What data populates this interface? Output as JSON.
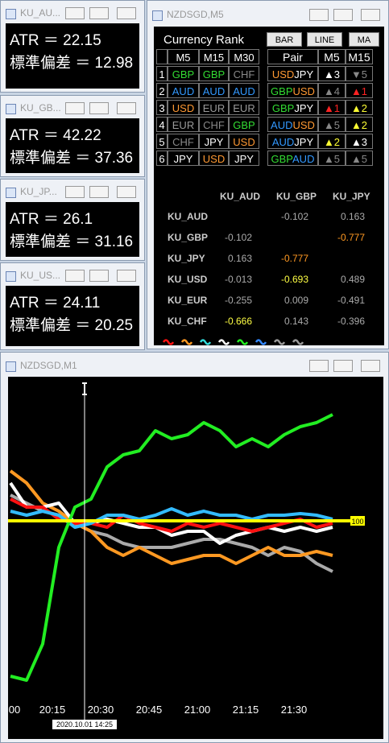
{
  "left_windows": [
    {
      "title": "KU_AU...",
      "lines": [
        "ATR ＝ 22.15",
        "標準偏差 ＝ 12.98"
      ]
    },
    {
      "title": "KU_GB...",
      "lines": [
        "ATR ＝ 42.22",
        "標準偏差 ＝ 37.36"
      ]
    },
    {
      "title": "KU_JP...",
      "lines": [
        "ATR ＝ 26.1",
        "標準偏差 ＝ 31.16"
      ]
    },
    {
      "title": "KU_US...",
      "lines": [
        "ATR ＝ 24.11",
        "標準偏差 ＝ 20.25"
      ]
    }
  ],
  "rank_window": {
    "title": "NZDSGD,M5",
    "heading": "Currency Rank",
    "buttons": [
      "BAR",
      "LINE",
      "MA"
    ],
    "currency_colors": {
      "GBP": "#33dd33",
      "AUD": "#3399ff",
      "USD": "#ff9933",
      "EUR": "#999999",
      "CHF": "#888888",
      "JPY": "#ffffff"
    },
    "ranks": [
      1,
      2,
      3,
      4,
      5,
      6
    ],
    "rank_table": {
      "columns": [
        "M5",
        "M15",
        "M30"
      ],
      "rows": [
        [
          "GBP",
          "GBP",
          "CHF"
        ],
        [
          "AUD",
          "AUD",
          "AUD"
        ],
        [
          "USD",
          "EUR",
          "EUR"
        ],
        [
          "EUR",
          "CHF",
          "GBP"
        ],
        [
          "CHF",
          "JPY",
          "USD"
        ],
        [
          "JPY",
          "USD",
          "JPY"
        ]
      ]
    },
    "pair_table": {
      "columns": [
        "Pair",
        "M5",
        "M15"
      ],
      "rows": [
        {
          "pair": [
            "USD",
            "JPY"
          ],
          "m5": "▲3",
          "m5_color": "#ffffff",
          "m15": "▼5",
          "m15_color": "#888888"
        },
        {
          "pair": [
            "GBP",
            "USD"
          ],
          "m5": "▲4",
          "m5_color": "#888888",
          "m15": "▲1",
          "m15_color": "#ff2222"
        },
        {
          "pair": [
            "GBP",
            "JPY"
          ],
          "m5": "▲1",
          "m5_color": "#ff2222",
          "m15": "▲2",
          "m15_color": "#ffff33"
        },
        {
          "pair": [
            "AUD",
            "USD"
          ],
          "m5": "▲5",
          "m5_color": "#888888",
          "m15": "▲2",
          "m15_color": "#ffff33"
        },
        {
          "pair": [
            "AUD",
            "JPY"
          ],
          "m5": "▲2",
          "m5_color": "#ffff33",
          "m15": "▲3",
          "m15_color": "#ffffff"
        },
        {
          "pair": [
            "GBP",
            "AUD"
          ],
          "m5": "▲5",
          "m5_color": "#888888",
          "m15": "▲5",
          "m15_color": "#888888"
        }
      ]
    },
    "correlation": {
      "columns": [
        "KU_AUD",
        "KU_GBP",
        "KU_JPY"
      ],
      "rows": [
        {
          "label": "KU_AUD",
          "values": [
            null,
            -0.102,
            0.163
          ],
          "colors": [
            null,
            "#aaaaaa",
            "#aaaaaa"
          ]
        },
        {
          "label": "KU_GBP",
          "values": [
            -0.102,
            null,
            -0.777
          ],
          "colors": [
            "#aaaaaa",
            null,
            "#ff9922"
          ]
        },
        {
          "label": "KU_JPY",
          "values": [
            0.163,
            -0.777,
            null
          ],
          "colors": [
            "#aaaaaa",
            "#ff9922",
            null
          ]
        },
        {
          "label": "KU_USD",
          "values": [
            -0.013,
            -0.693,
            0.489
          ],
          "colors": [
            "#aaaaaa",
            "#ffff44",
            "#aaaaaa"
          ]
        },
        {
          "label": "KU_EUR",
          "values": [
            -0.255,
            0.009,
            -0.491
          ],
          "colors": [
            "#aaaaaa",
            "#aaaaaa",
            "#aaaaaa"
          ]
        },
        {
          "label": "KU_CHF",
          "values": [
            -0.666,
            0.143,
            -0.396
          ],
          "colors": [
            "#ffff44",
            "#aaaaaa",
            "#aaaaaa"
          ]
        }
      ]
    }
  },
  "chart": {
    "type": "line",
    "title": "NZDSGD,M1",
    "x": [
      2,
      7,
      12,
      17,
      22,
      27,
      32,
      37,
      42,
      47,
      52,
      57,
      62,
      67,
      72,
      77,
      82,
      87,
      92,
      97,
      102
    ],
    "xlim": [
      1.25,
      117.75
    ],
    "xticks": [
      {
        "value": 0,
        "label": "00"
      },
      {
        "value": 15,
        "label": "20:15"
      },
      {
        "value": 30,
        "label": "20:30"
      },
      {
        "value": 45,
        "label": "20:45"
      },
      {
        "value": 60,
        "label": "21:00"
      },
      {
        "value": 75,
        "label": "21:15"
      },
      {
        "value": 90,
        "label": "21:30"
      }
    ],
    "ylim": [
      -12,
      188
    ],
    "level": {
      "value": 100,
      "label": "100",
      "color": "#ffff00"
    },
    "cursor": {
      "x": 25,
      "label": "2020.10.01 14:25"
    },
    "series": [
      {
        "color": "#aaaaaa",
        "values": [
          116,
          111,
          106,
          103.5,
          98.5,
          93.5,
          91,
          86,
          83.5,
          83.5,
          83.5,
          86,
          88.5,
          88.5,
          86,
          83.5,
          78.5,
          83.5,
          81,
          73.5,
          68.5
        ]
      },
      {
        "color": "#ff9922",
        "values": [
          131,
          123.5,
          111,
          106,
          98.5,
          93.5,
          83.5,
          78.5,
          83.5,
          78.5,
          73.5,
          76,
          78.5,
          78.5,
          73.5,
          78.5,
          83.5,
          78.5,
          78.5,
          81,
          78.5
        ]
      },
      {
        "color": "#ffffff",
        "values": [
          123.5,
          108.5,
          108.5,
          111,
          98.5,
          98.5,
          101,
          98.5,
          96,
          96,
          91,
          93.5,
          93.5,
          86,
          91,
          93.5,
          96,
          93.5,
          96,
          93.5,
          96
        ]
      },
      {
        "color": "#ff1111",
        "values": [
          113.5,
          108.5,
          108.5,
          101,
          98.5,
          98.5,
          96,
          103.5,
          98.5,
          96,
          93.5,
          98.5,
          96,
          98.5,
          96,
          93.5,
          96,
          98.5,
          101,
          96,
          98.5
        ]
      },
      {
        "color": "#33bbff",
        "values": [
          106,
          103.5,
          106,
          103.5,
          96,
          98.5,
          103.5,
          103.5,
          101,
          103.5,
          107.5,
          103.5,
          106,
          103.5,
          103.5,
          101,
          103.5,
          103.5,
          104.5,
          103.5,
          101
        ]
      },
      {
        "color": "#22ee22",
        "values": [
          3.5,
          1,
          23.5,
          83.5,
          108.5,
          113.5,
          133.5,
          141,
          143.5,
          156,
          151,
          153.5,
          161,
          156,
          146,
          151,
          146,
          153.5,
          158.5,
          161,
          166
        ]
      }
    ]
  }
}
